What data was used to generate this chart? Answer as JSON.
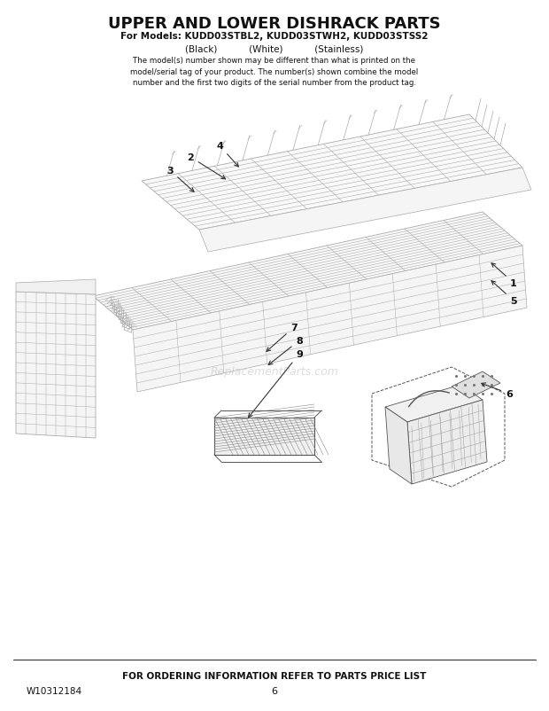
{
  "title": "UPPER AND LOWER DISHRACK PARTS",
  "subtitle": "For Models: KUDD03STBL2, KUDD03STWH2, KUDD03STSS2",
  "subtitle2": "(Black)           (White)           (Stainless)",
  "body_text": "The model(s) number shown may be different than what is printed on the\nmodel/serial tag of your product. The number(s) shown combine the model\nnumber and the first two digits of the serial number from the product tag.",
  "footer_text": "FOR ORDERING INFORMATION REFER TO PARTS PRICE LIST",
  "part_number": "W10312184",
  "page_number": "6",
  "bg_color": "#ffffff",
  "line_color": "#aaaaaa",
  "dark_line": "#555555",
  "label_color": "#111111",
  "watermark": "ReplacementParts.com",
  "figsize": [
    6.2,
    8.03
  ],
  "dpi": 100
}
